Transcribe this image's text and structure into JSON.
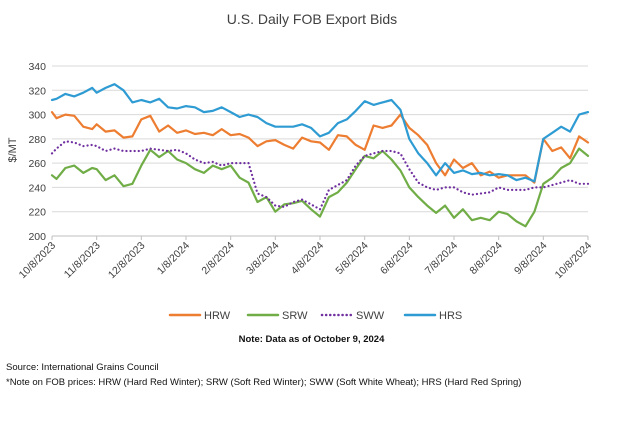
{
  "chart_data": {
    "type": "line",
    "title": "U.S. Daily FOB Export Bids",
    "ylabel": "$/MT",
    "xlabel": "",
    "ylim": [
      200,
      340
    ],
    "yticks": [
      200,
      220,
      240,
      260,
      280,
      300,
      320,
      340
    ],
    "xticks": [
      "10/8/2023",
      "11/8/2023",
      "12/8/2023",
      "1/8/2024",
      "2/8/2024",
      "3/8/2024",
      "4/8/2024",
      "5/8/2024",
      "6/8/2024",
      "7/8/2024",
      "8/8/2024",
      "9/8/2024",
      "10/8/2024"
    ],
    "grid": "horizontal",
    "legend": "bottom",
    "note": "Note: Data as of October 9, 2024",
    "source": "Source: International Grains Council",
    "footnote": "*Note on FOB prices: HRW (Hard Red Winter); SRW (Soft Red Winter); SWW (Soft White Wheat); HRS (Hard Red Spring)",
    "series": [
      {
        "name": "HRW",
        "color": "#ED7D31",
        "dash": "solid",
        "x": [
          0,
          0.1,
          0.3,
          0.5,
          0.7,
          0.9,
          1.0,
          1.2,
          1.4,
          1.6,
          1.8,
          2.0,
          2.2,
          2.4,
          2.6,
          2.8,
          3.0,
          3.2,
          3.4,
          3.6,
          3.8,
          4.0,
          4.2,
          4.4,
          4.6,
          4.8,
          5.0,
          5.2,
          5.4,
          5.6,
          5.8,
          6.0,
          6.2,
          6.4,
          6.6,
          6.8,
          7.0,
          7.2,
          7.4,
          7.6,
          7.8,
          8.0,
          8.2,
          8.4,
          8.6,
          8.8,
          9.0,
          9.2,
          9.4,
          9.6,
          9.8,
          10.0,
          10.2,
          10.4,
          10.6,
          10.8,
          11.0,
          11.2,
          11.4,
          11.6,
          11.8,
          12.0
        ],
        "values": [
          302,
          297,
          300,
          299,
          290,
          288,
          292,
          286,
          287,
          281,
          282,
          296,
          299,
          286,
          291,
          285,
          287,
          284,
          285,
          283,
          288,
          283,
          284,
          281,
          274,
          278,
          279,
          275,
          272,
          281,
          278,
          277,
          271,
          283,
          282,
          275,
          271,
          291,
          289,
          291,
          300,
          289,
          283,
          275,
          260,
          250,
          263,
          256,
          260,
          250,
          253,
          248,
          250,
          250,
          250,
          244,
          280,
          270,
          273,
          264,
          282,
          277
        ]
      },
      {
        "name": "SRW",
        "color": "#70AD47",
        "dash": "solid",
        "x": [
          0,
          0.1,
          0.3,
          0.5,
          0.7,
          0.9,
          1.0,
          1.2,
          1.4,
          1.6,
          1.8,
          2.0,
          2.2,
          2.4,
          2.6,
          2.8,
          3.0,
          3.2,
          3.4,
          3.6,
          3.8,
          4.0,
          4.2,
          4.4,
          4.6,
          4.8,
          5.0,
          5.2,
          5.4,
          5.6,
          5.8,
          6.0,
          6.2,
          6.4,
          6.6,
          6.8,
          7.0,
          7.2,
          7.4,
          7.6,
          7.8,
          8.0,
          8.2,
          8.4,
          8.6,
          8.8,
          9.0,
          9.2,
          9.4,
          9.6,
          9.8,
          10.0,
          10.2,
          10.4,
          10.6,
          10.8,
          11.0,
          11.2,
          11.4,
          11.6,
          11.8,
          12.0
        ],
        "values": [
          250,
          247,
          256,
          258,
          252,
          256,
          255,
          246,
          250,
          241,
          243,
          258,
          271,
          265,
          270,
          263,
          260,
          255,
          252,
          258,
          255,
          258,
          248,
          244,
          228,
          232,
          220,
          226,
          227,
          229,
          222,
          216,
          232,
          236,
          244,
          255,
          266,
          264,
          270,
          263,
          254,
          240,
          232,
          225,
          219,
          225,
          215,
          222,
          213,
          215,
          213,
          220,
          218,
          212,
          208,
          220,
          243,
          248,
          256,
          260,
          272,
          266
        ]
      },
      {
        "name": "SWW",
        "color": "#7030A0",
        "dash": "dotted",
        "x": [
          0,
          0.1,
          0.3,
          0.5,
          0.7,
          0.9,
          1.0,
          1.2,
          1.4,
          1.6,
          1.8,
          2.0,
          2.2,
          2.4,
          2.6,
          2.8,
          3.0,
          3.2,
          3.4,
          3.6,
          3.8,
          4.0,
          4.2,
          4.4,
          4.6,
          4.8,
          5.0,
          5.2,
          5.4,
          5.6,
          5.8,
          6.0,
          6.2,
          6.4,
          6.6,
          6.8,
          7.0,
          7.2,
          7.4,
          7.6,
          7.8,
          8.0,
          8.2,
          8.4,
          8.6,
          8.8,
          9.0,
          9.2,
          9.4,
          9.6,
          9.8,
          10.0,
          10.2,
          10.4,
          10.6,
          10.8,
          11.0,
          11.2,
          11.4,
          11.6,
          11.8,
          12.0
        ],
        "values": [
          268,
          272,
          278,
          277,
          274,
          275,
          274,
          270,
          272,
          270,
          270,
          270,
          272,
          271,
          270,
          271,
          268,
          263,
          260,
          261,
          258,
          260,
          260,
          260,
          235,
          232,
          225,
          224,
          228,
          230,
          226,
          222,
          238,
          242,
          246,
          258,
          266,
          268,
          270,
          270,
          268,
          255,
          244,
          240,
          238,
          240,
          240,
          236,
          234,
          235,
          236,
          240,
          238,
          238,
          238,
          240,
          240,
          242,
          244,
          246,
          243,
          243
        ]
      },
      {
        "name": "HRS",
        "color": "#2E9BD3",
        "dash": "solid",
        "x": [
          0,
          0.1,
          0.3,
          0.5,
          0.7,
          0.9,
          1.0,
          1.2,
          1.4,
          1.6,
          1.8,
          2.0,
          2.2,
          2.4,
          2.6,
          2.8,
          3.0,
          3.2,
          3.4,
          3.6,
          3.8,
          4.0,
          4.2,
          4.4,
          4.6,
          4.8,
          5.0,
          5.2,
          5.4,
          5.6,
          5.8,
          6.0,
          6.2,
          6.4,
          6.6,
          6.8,
          7.0,
          7.2,
          7.4,
          7.6,
          7.8,
          8.0,
          8.2,
          8.4,
          8.6,
          8.8,
          9.0,
          9.2,
          9.4,
          9.6,
          9.8,
          10.0,
          10.2,
          10.4,
          10.6,
          10.8,
          11.0,
          11.2,
          11.4,
          11.6,
          11.8,
          12.0
        ],
        "values": [
          312,
          313,
          317,
          315,
          318,
          322,
          318,
          322,
          325,
          320,
          310,
          312,
          310,
          313,
          306,
          305,
          307,
          306,
          302,
          303,
          306,
          302,
          298,
          300,
          298,
          293,
          290,
          290,
          290,
          292,
          289,
          282,
          285,
          293,
          296,
          303,
          311,
          308,
          310,
          312,
          304,
          280,
          268,
          260,
          250,
          260,
          252,
          254,
          251,
          252,
          250,
          251,
          250,
          246,
          248,
          245,
          280,
          285,
          290,
          286,
          300,
          302
        ]
      }
    ]
  }
}
